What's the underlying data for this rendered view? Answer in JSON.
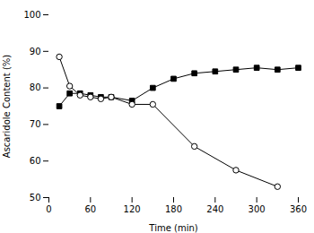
{
  "chart_data": {
    "type": "line",
    "xlabel": "Time (min)",
    "ylabel": "Ascaridole Content (%)",
    "xlim": [
      0,
      360
    ],
    "ylim": [
      50,
      100
    ],
    "xticks": [
      0,
      60,
      120,
      180,
      240,
      300,
      360
    ],
    "yticks": [
      50,
      60,
      70,
      80,
      90,
      100
    ],
    "grid": false,
    "series": [
      {
        "color": "#000000",
        "marker": "square",
        "x": [
          15,
          30,
          45,
          60,
          75,
          90,
          120,
          150,
          180,
          210,
          240,
          270,
          300,
          330,
          360
        ],
        "values": [
          75.0,
          78.5,
          78.5,
          78.0,
          77.5,
          77.5,
          76.5,
          80.0,
          82.5,
          84.0,
          84.5,
          85.0,
          85.5,
          85.0,
          85.5
        ]
      },
      {
        "color": "#000000",
        "marker": "circle-open",
        "x": [
          15,
          30,
          45,
          60,
          75,
          90,
          120,
          150,
          210,
          270,
          330
        ],
        "values": [
          88.5,
          80.5,
          78.0,
          77.5,
          77.0,
          77.5,
          75.5,
          75.5,
          64.0,
          57.5,
          53.0
        ]
      }
    ]
  }
}
